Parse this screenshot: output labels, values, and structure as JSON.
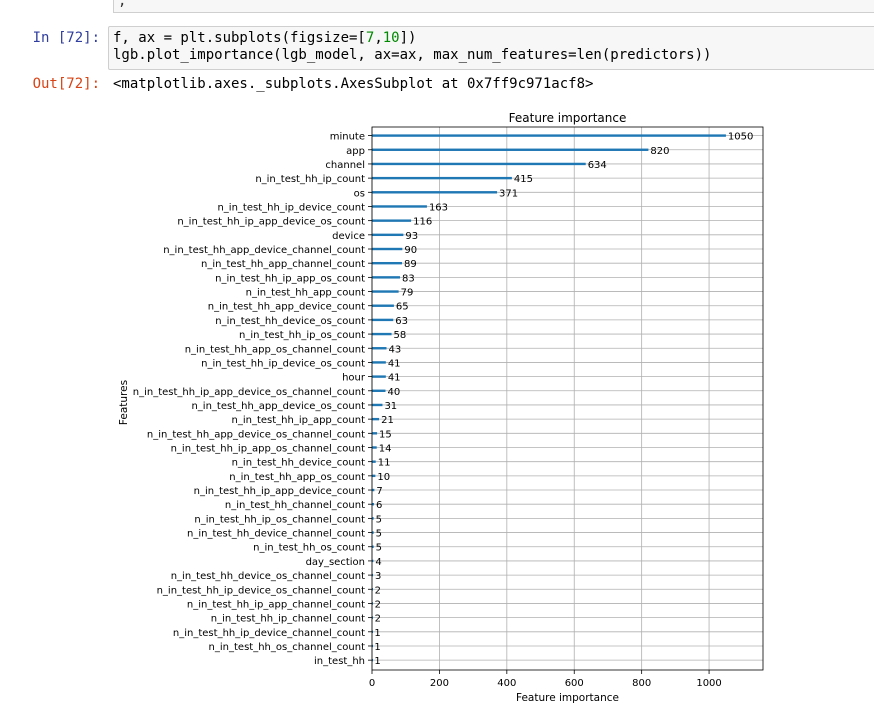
{
  "prev_cell": {
    "text": ","
  },
  "in_cell": {
    "prompt": "In [72]:",
    "line1_pre": "f, ax = plt.subplots(figsize=[",
    "line1_n1": "7",
    "line1_sep": ",",
    "line1_n2": "10",
    "line1_post": "])",
    "line2": "lgb.plot_importance(lgb_model, ax=ax, max_num_features=len(predictors))"
  },
  "out_cell": {
    "prompt": "Out[72]:",
    "text": "<matplotlib.axes._subplots.AxesSubplot at 0x7ff9c971acf8>"
  },
  "colors": {
    "bar": "#1f77b4",
    "grid": "#b0b0b0",
    "in_prompt": "#303f9f",
    "out_prompt": "#d84315"
  },
  "chart_data": {
    "type": "bar",
    "orientation": "horizontal",
    "title": "Feature importance",
    "xlabel": "Feature importance",
    "ylabel": "Features",
    "xlim": [
      0,
      1160
    ],
    "xticks": [
      0,
      200,
      400,
      600,
      800,
      1000
    ],
    "grid": true,
    "categories": [
      "minute",
      "app",
      "channel",
      "n_in_test_hh_ip_count",
      "os",
      "n_in_test_hh_ip_device_count",
      "n_in_test_hh_ip_app_device_os_count",
      "device",
      "n_in_test_hh_app_device_channel_count",
      "n_in_test_hh_app_channel_count",
      "n_in_test_hh_ip_app_os_count",
      "n_in_test_hh_app_count",
      "n_in_test_hh_app_device_count",
      "n_in_test_hh_device_os_count",
      "n_in_test_hh_ip_os_count",
      "n_in_test_hh_app_os_channel_count",
      "n_in_test_hh_ip_device_os_count",
      "hour",
      "n_in_test_hh_ip_app_device_os_channel_count",
      "n_in_test_hh_app_device_os_count",
      "n_in_test_hh_ip_app_count",
      "n_in_test_hh_app_device_os_channel_count",
      "n_in_test_hh_ip_app_os_channel_count",
      "n_in_test_hh_device_count",
      "n_in_test_hh_app_os_count",
      "n_in_test_hh_ip_app_device_count",
      "n_in_test_hh_channel_count",
      "n_in_test_hh_ip_os_channel_count",
      "n_in_test_hh_device_channel_count",
      "n_in_test_hh_os_count",
      "day_section",
      "n_in_test_hh_device_os_channel_count",
      "n_in_test_hh_ip_device_os_channel_count",
      "n_in_test_hh_ip_app_channel_count",
      "n_in_test_hh_ip_channel_count",
      "n_in_test_hh_ip_device_channel_count",
      "n_in_test_hh_os_channel_count",
      "in_test_hh"
    ],
    "values": [
      1050,
      820,
      634,
      415,
      371,
      163,
      116,
      93,
      90,
      89,
      83,
      79,
      65,
      63,
      58,
      43,
      41,
      41,
      40,
      31,
      21,
      15,
      14,
      11,
      10,
      7,
      6,
      5,
      5,
      5,
      4,
      3,
      2,
      2,
      2,
      1,
      1,
      1
    ]
  }
}
